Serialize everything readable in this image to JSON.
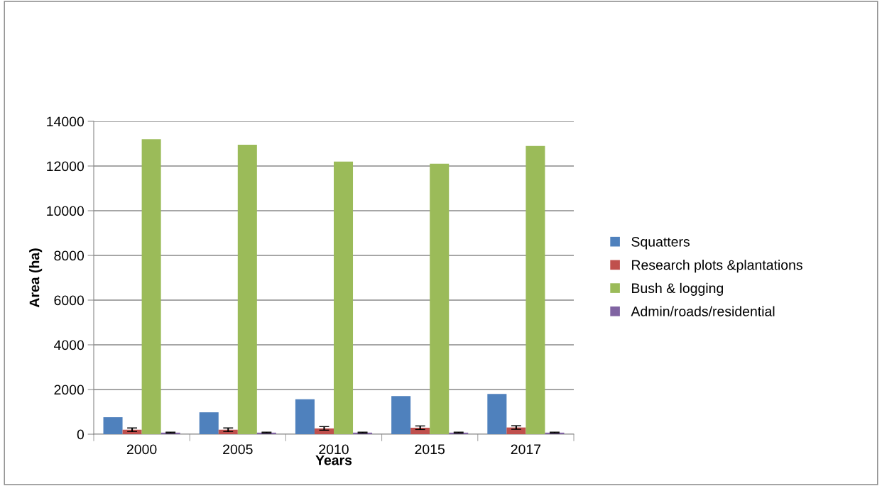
{
  "chart_data": {
    "type": "bar",
    "xlabel": "Years",
    "ylabel": "Area (ha)",
    "categories": [
      "2000",
      "2005",
      "2010",
      "2015",
      "2017"
    ],
    "series": [
      {
        "name": "Squatters",
        "color": "#4f81bd",
        "values": [
          760,
          980,
          1560,
          1710,
          1800
        ]
      },
      {
        "name": "Research plots &plantations",
        "color": "#c0504d",
        "values": [
          200,
          200,
          260,
          290,
          300
        ],
        "errors": [
          80,
          80,
          80,
          80,
          80
        ]
      },
      {
        "name": "Bush & logging",
        "color": "#9bbb59",
        "values": [
          13200,
          12950,
          12200,
          12100,
          12900
        ]
      },
      {
        "name": "Admin/roads/residential",
        "color": "#8064a2",
        "values": [
          70,
          70,
          70,
          70,
          70
        ],
        "errors": [
          20,
          20,
          20,
          20,
          20
        ]
      }
    ],
    "ylim": [
      0,
      14000
    ],
    "yticks": [
      0,
      2000,
      4000,
      6000,
      8000,
      10000,
      12000,
      14000
    ],
    "grid": "y",
    "legend": "right"
  }
}
